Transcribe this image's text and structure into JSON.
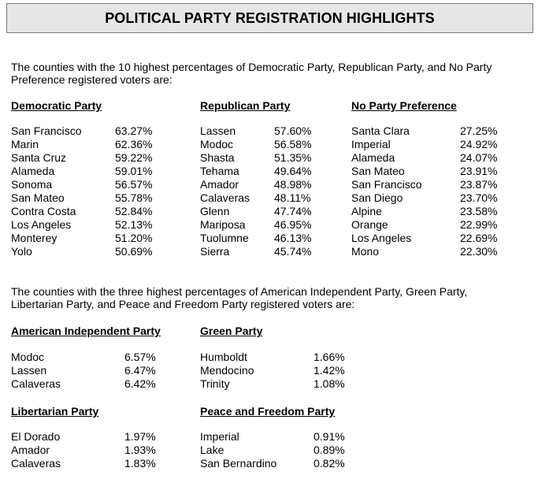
{
  "title": "POLITICAL PARTY REGISTRATION HIGHLIGHTS",
  "intro_top": [
    "The counties with the 10 highest percentages of Democratic Party, Republican Party, and No Party",
    "Preference registered voters are:"
  ],
  "top_parties": [
    {
      "name": "Democratic Party",
      "rows": [
        {
          "county": "San Francisco",
          "pct": "63.27%"
        },
        {
          "county": "Marin",
          "pct": "62.36%"
        },
        {
          "county": "Santa Cruz",
          "pct": "59.22%"
        },
        {
          "county": "Alameda",
          "pct": "59.01%"
        },
        {
          "county": "Sonoma",
          "pct": "56.57%"
        },
        {
          "county": "San Mateo",
          "pct": "55.78%"
        },
        {
          "county": "Contra Costa",
          "pct": "52.84%"
        },
        {
          "county": "Los Angeles",
          "pct": "52.13%"
        },
        {
          "county": "Monterey",
          "pct": "51.20%"
        },
        {
          "county": "Yolo",
          "pct": "50.69%"
        }
      ]
    },
    {
      "name": "Republican Party",
      "rows": [
        {
          "county": "Lassen",
          "pct": "57.60%"
        },
        {
          "county": "Modoc",
          "pct": "56.58%"
        },
        {
          "county": "Shasta",
          "pct": "51.35%"
        },
        {
          "county": "Tehama",
          "pct": "49.64%"
        },
        {
          "county": "Amador",
          "pct": "48.98%"
        },
        {
          "county": "Calaveras",
          "pct": "48.11%"
        },
        {
          "county": "Glenn",
          "pct": "47.74%"
        },
        {
          "county": "Mariposa",
          "pct": "46.95%"
        },
        {
          "county": "Tuolumne",
          "pct": "46.13%"
        },
        {
          "county": "Sierra",
          "pct": "45.74%"
        }
      ]
    },
    {
      "name": "No Party Preference",
      "rows": [
        {
          "county": "Santa Clara",
          "pct": "27.25%"
        },
        {
          "county": "Imperial",
          "pct": "24.92%"
        },
        {
          "county": "Alameda",
          "pct": "24.07%"
        },
        {
          "county": "San Mateo",
          "pct": "23.91%"
        },
        {
          "county": "San Francisco",
          "pct": "23.87%"
        },
        {
          "county": "San Diego",
          "pct": "23.70%"
        },
        {
          "county": "Alpine",
          "pct": "23.58%"
        },
        {
          "county": "Orange",
          "pct": "22.99%"
        },
        {
          "county": "Los Angeles",
          "pct": "22.69%"
        },
        {
          "county": "Mono",
          "pct": "22.30%"
        }
      ]
    }
  ],
  "intro_small": [
    "The counties with the three highest percentages of American Independent Party, Green Party,",
    "Libertarian Party, and Peace and Freedom Party registered voters are:"
  ],
  "small_parties": [
    {
      "name": "American Independent Party",
      "rows": [
        {
          "county": "Modoc",
          "pct": "6.57%"
        },
        {
          "county": "Lassen",
          "pct": "6.47%"
        },
        {
          "county": "Calaveras",
          "pct": "6.42%"
        }
      ]
    },
    {
      "name": "Green Party",
      "rows": [
        {
          "county": "Humboldt",
          "pct": "1.66%"
        },
        {
          "county": "Mendocino",
          "pct": "1.42%"
        },
        {
          "county": "Trinity",
          "pct": "1.08%"
        }
      ]
    },
    {
      "name": "Libertarian Party",
      "rows": [
        {
          "county": "El Dorado",
          "pct": "1.97%"
        },
        {
          "county": "Amador",
          "pct": "1.93%"
        },
        {
          "county": "Calaveras",
          "pct": "1.83%"
        }
      ]
    },
    {
      "name": "Peace and Freedom Party",
      "rows": [
        {
          "county": "Imperial",
          "pct": "0.91%"
        },
        {
          "county": "Lake",
          "pct": "0.89%"
        },
        {
          "county": "San Bernardino",
          "pct": "0.82%"
        }
      ]
    }
  ]
}
